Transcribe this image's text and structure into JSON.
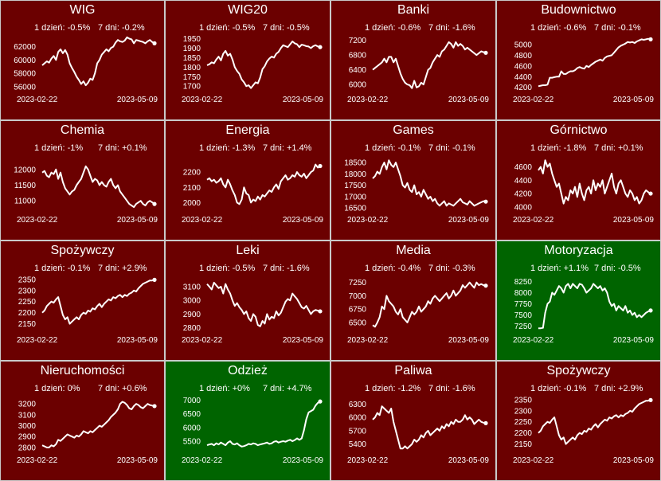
{
  "colors": {
    "down": "#6b0000",
    "up": "#006400",
    "line": "#ffffff",
    "border": "#c9c9c9"
  },
  "chart_data": [
    {
      "type": "line",
      "title": "WIG",
      "change_1d": "1 dzień: -0.5%",
      "change_7d": "7 dni: -0.2%",
      "trend": "down",
      "date_start": "2023-02-22",
      "date_end": "2023-05-09",
      "yticks": [
        "56000",
        "58000",
        "60000",
        "62000"
      ],
      "ylim": [
        55500,
        63500
      ],
      "values": [
        59200,
        59500,
        59800,
        59600,
        60200,
        60600,
        60000,
        61200,
        61600,
        61000,
        61500,
        60800,
        59500,
        58800,
        58200,
        57500,
        57000,
        56400,
        56800,
        56200,
        56600,
        57200,
        57000,
        58000,
        59500,
        60000,
        60800,
        61200,
        61600,
        61300,
        61800,
        62000,
        62600,
        63000,
        62800,
        62700,
        62900,
        63400,
        63200,
        63100,
        62500,
        63000,
        62900,
        62800,
        62700,
        62500,
        62800,
        63000,
        62700,
        62500
      ]
    },
    {
      "type": "line",
      "title": "WIG20",
      "change_1d": "1 dzień: -0.5%",
      "change_7d": "7 dni: -0.5%",
      "trend": "down",
      "date_start": "2023-02-22",
      "date_end": "2023-05-09",
      "yticks": [
        "1700",
        "1750",
        "1800",
        "1850",
        "1900",
        "1950"
      ],
      "ylim": [
        1680,
        1960
      ],
      "values": [
        1810,
        1815,
        1825,
        1820,
        1840,
        1855,
        1835,
        1870,
        1885,
        1860,
        1870,
        1840,
        1800,
        1780,
        1765,
        1735,
        1720,
        1700,
        1705,
        1690,
        1705,
        1720,
        1715,
        1745,
        1790,
        1805,
        1830,
        1845,
        1855,
        1850,
        1870,
        1880,
        1900,
        1915,
        1910,
        1905,
        1920,
        1935,
        1925,
        1920,
        1905,
        1918,
        1915,
        1910,
        1908,
        1900,
        1910,
        1915,
        1908,
        1905
      ]
    },
    {
      "type": "line",
      "title": "Banki",
      "change_1d": "1 dzień: -0.6%",
      "change_7d": "7 dni: -1.6%",
      "trend": "down",
      "date_start": "2023-02-22",
      "date_end": "2023-05-09",
      "yticks": [
        "6000",
        "6400",
        "6800",
        "7200"
      ],
      "ylim": [
        5850,
        7300
      ],
      "values": [
        6400,
        6450,
        6500,
        6550,
        6600,
        6700,
        6600,
        6750,
        6750,
        6600,
        6700,
        6500,
        6300,
        6150,
        6050,
        6000,
        5980,
        5900,
        6100,
        5920,
        5950,
        6050,
        6000,
        6200,
        6400,
        6450,
        6600,
        6700,
        6800,
        6750,
        6900,
        6950,
        7050,
        7150,
        7100,
        7000,
        7150,
        7050,
        7100,
        7050,
        6950,
        7000,
        6950,
        6900,
        6850,
        6800,
        6850,
        6900,
        6880,
        6860
      ]
    },
    {
      "type": "line",
      "title": "Budownictwo",
      "change_1d": "1 dzień: -0.6%",
      "change_7d": "7 dni: -0.1%",
      "trend": "down",
      "date_start": "2023-02-22",
      "date_end": "2023-05-09",
      "yticks": [
        "4200",
        "4400",
        "4600",
        "4800",
        "5000"
      ],
      "ylim": [
        4150,
        5150
      ],
      "values": [
        4220,
        4230,
        4240,
        4240,
        4250,
        4380,
        4380,
        4390,
        4400,
        4400,
        4500,
        4450,
        4450,
        4480,
        4500,
        4500,
        4520,
        4560,
        4580,
        4560,
        4550,
        4600,
        4580,
        4620,
        4650,
        4680,
        4700,
        4720,
        4700,
        4750,
        4780,
        4790,
        4800,
        4850,
        4900,
        4950,
        4980,
        5000,
        5020,
        5050,
        5040,
        5050,
        5030,
        5060,
        5080,
        5100,
        5090,
        5100,
        5110,
        5100
      ]
    },
    {
      "type": "line",
      "title": "Chemia",
      "change_1d": "1 dzień: -1%",
      "change_7d": "7 dni: +0.1%",
      "trend": "down",
      "date_start": "2023-02-22",
      "date_end": "2023-05-09",
      "yticks": [
        "11000",
        "11500",
        "12000"
      ],
      "ylim": [
        10700,
        12400
      ],
      "values": [
        11900,
        11950,
        11800,
        11750,
        11900,
        11850,
        12000,
        11700,
        11900,
        11600,
        11400,
        11300,
        11200,
        11300,
        11350,
        11500,
        11600,
        11700,
        11900,
        12100,
        12000,
        11800,
        11600,
        11700,
        11650,
        11500,
        11600,
        11500,
        11450,
        11600,
        11700,
        11500,
        11400,
        11500,
        11300,
        11200,
        11100,
        11000,
        10900,
        10850,
        10800,
        10900,
        10950,
        11000,
        10900,
        10850,
        10950,
        11000,
        10950,
        10900
      ]
    },
    {
      "type": "line",
      "title": "Energia",
      "change_1d": "1 dzień: -1.3%",
      "change_7d": "7 dni: +1.4%",
      "trend": "down",
      "date_start": "2023-02-22",
      "date_end": "2023-05-09",
      "yticks": [
        "2000",
        "2100",
        "2200"
      ],
      "ylim": [
        1950,
        2300
      ],
      "values": [
        2150,
        2160,
        2140,
        2150,
        2130,
        2140,
        2160,
        2120,
        2100,
        2150,
        2120,
        2080,
        2050,
        2000,
        1990,
        2020,
        2100,
        2060,
        2050,
        2000,
        2020,
        2010,
        2040,
        2020,
        2050,
        2040,
        2060,
        2080,
        2070,
        2100,
        2120,
        2090,
        2140,
        2160,
        2180,
        2150,
        2160,
        2180,
        2170,
        2200,
        2180,
        2170,
        2190,
        2160,
        2180,
        2200,
        2210,
        2250,
        2230,
        2240
      ]
    },
    {
      "type": "line",
      "title": "Games",
      "change_1d": "1 dzień: -0.1%",
      "change_7d": "7 dni: -0.1%",
      "trend": "down",
      "date_start": "2023-02-22",
      "date_end": "2023-05-09",
      "yticks": [
        "16500",
        "17000",
        "17500",
        "18000",
        "18500"
      ],
      "ylim": [
        16400,
        18750
      ],
      "values": [
        17800,
        17900,
        18100,
        18000,
        18300,
        18500,
        18200,
        18600,
        18400,
        18300,
        18500,
        18200,
        17900,
        17500,
        17400,
        17600,
        17300,
        17200,
        17500,
        17100,
        17200,
        17000,
        17300,
        17100,
        16900,
        17000,
        16800,
        16900,
        16700,
        16600,
        16700,
        16800,
        16600,
        16700,
        16650,
        16600,
        16700,
        16800,
        16900,
        16750,
        16700,
        16650,
        16800,
        16700,
        16600,
        16650,
        16700,
        16750,
        16800,
        16780
      ]
    },
    {
      "type": "line",
      "title": "Górnictwo",
      "change_1d": "1 dzień: -1.8%",
      "change_7d": "7 dni: +0.1%",
      "trend": "down",
      "date_start": "2023-02-22",
      "date_end": "2023-05-09",
      "yticks": [
        "4000",
        "4200",
        "4400",
        "4600"
      ],
      "ylim": [
        3950,
        4750
      ],
      "values": [
        4550,
        4600,
        4500,
        4700,
        4600,
        4650,
        4500,
        4400,
        4300,
        4350,
        4200,
        4050,
        4150,
        4100,
        4250,
        4200,
        4300,
        4150,
        4350,
        4200,
        4100,
        4250,
        4300,
        4200,
        4400,
        4250,
        4350,
        4300,
        4400,
        4200,
        4300,
        4400,
        4500,
        4300,
        4200,
        4350,
        4400,
        4300,
        4200,
        4150,
        4250,
        4200,
        4100,
        4150,
        4050,
        4100,
        4200,
        4250,
        4220,
        4200
      ]
    },
    {
      "type": "line",
      "title": "Spożywczy",
      "change_1d": "1 dzień: -0.1%",
      "change_7d": "7 dni: +2.9%",
      "trend": "down",
      "date_start": "2023-02-22",
      "date_end": "2023-05-09",
      "yticks": [
        "2150",
        "2200",
        "2250",
        "2300",
        "2350"
      ],
      "ylim": [
        2120,
        2360
      ],
      "values": [
        2200,
        2210,
        2230,
        2240,
        2250,
        2245,
        2260,
        2270,
        2230,
        2190,
        2170,
        2180,
        2150,
        2160,
        2170,
        2180,
        2170,
        2190,
        2200,
        2195,
        2210,
        2205,
        2220,
        2215,
        2230,
        2240,
        2225,
        2240,
        2250,
        2260,
        2255,
        2270,
        2265,
        2275,
        2280,
        2270,
        2280,
        2275,
        2285,
        2290,
        2300,
        2295,
        2310,
        2320,
        2330,
        2335,
        2340,
        2345,
        2345,
        2348
      ]
    },
    {
      "type": "line",
      "title": "Leki",
      "change_1d": "1 dzień: -0.5%",
      "change_7d": "7 dni: -1.6%",
      "trend": "down",
      "date_start": "2023-02-22",
      "date_end": "2023-05-09",
      "yticks": [
        "2800",
        "2900",
        "3000",
        "3100"
      ],
      "ylim": [
        2780,
        3170
      ],
      "values": [
        3120,
        3100,
        3080,
        3130,
        3110,
        3090,
        3100,
        3050,
        3120,
        3080,
        3050,
        3000,
        2960,
        2980,
        2950,
        2930,
        2900,
        2920,
        2870,
        2850,
        2900,
        2880,
        2820,
        2810,
        2850,
        2830,
        2900,
        2860,
        2880,
        2870,
        2920,
        2890,
        2910,
        2950,
        2990,
        3010,
        3000,
        3050,
        3030,
        3010,
        2980,
        2950,
        2940,
        2960,
        2930,
        2900,
        2920,
        2930,
        2925,
        2920
      ]
    },
    {
      "type": "line",
      "title": "Media",
      "change_1d": "1 dzień: -0.4%",
      "change_7d": "7 dni: -0.3%",
      "trend": "down",
      "date_start": "2023-02-22",
      "date_end": "2023-05-09",
      "yticks": [
        "6500",
        "6750",
        "7000",
        "7250"
      ],
      "ylim": [
        6350,
        7350
      ],
      "values": [
        6450,
        6420,
        6500,
        6600,
        6800,
        6750,
        7000,
        6900,
        6850,
        6800,
        6700,
        6650,
        6750,
        6600,
        6550,
        6500,
        6600,
        6700,
        6650,
        6700,
        6800,
        6700,
        6750,
        6800,
        6900,
        6850,
        6950,
        7000,
        6950,
        6900,
        6950,
        7000,
        7050,
        6950,
        7000,
        7100,
        7000,
        7050,
        7100,
        7200,
        7150,
        7200,
        7250,
        7200,
        7150,
        7250,
        7200,
        7220,
        7200,
        7190
      ]
    },
    {
      "type": "line",
      "title": "Motoryzacja",
      "change_1d": "1 dzień: +1.1%",
      "change_7d": "7 dni: -0.5%",
      "trend": "up",
      "date_start": "2023-02-22",
      "date_end": "2023-05-09",
      "yticks": [
        "7250",
        "7500",
        "7750",
        "8000",
        "8250"
      ],
      "ylim": [
        7150,
        8350
      ],
      "values": [
        7200,
        7200,
        7210,
        7550,
        7750,
        7800,
        8000,
        7950,
        8050,
        8150,
        8100,
        8000,
        8150,
        8200,
        8100,
        8200,
        8150,
        8100,
        8200,
        8180,
        8100,
        8000,
        8050,
        8100,
        8200,
        8150,
        8100,
        8150,
        8050,
        8100,
        8000,
        7800,
        7700,
        7750,
        7600,
        7700,
        7650,
        7600,
        7700,
        7550,
        7600,
        7500,
        7550,
        7450,
        7500,
        7450,
        7500,
        7550,
        7580,
        7600
      ]
    },
    {
      "type": "line",
      "title": "Nieruchomości",
      "change_1d": "1 dzień: 0%",
      "change_7d": "7 dni: +0.6%",
      "trend": "down",
      "date_start": "2023-02-22",
      "date_end": "2023-05-09",
      "yticks": [
        "2800",
        "2900",
        "3000",
        "3100",
        "3200"
      ],
      "ylim": [
        2770,
        3260
      ],
      "values": [
        2820,
        2810,
        2800,
        2800,
        2820,
        2810,
        2830,
        2870,
        2860,
        2880,
        2900,
        2920,
        2910,
        2900,
        2890,
        2910,
        2900,
        2920,
        2950,
        2940,
        2930,
        2950,
        2940,
        2960,
        2980,
        3000,
        2990,
        3010,
        3030,
        3050,
        3080,
        3100,
        3120,
        3150,
        3200,
        3220,
        3210,
        3190,
        3160,
        3150,
        3180,
        3200,
        3190,
        3170,
        3160,
        3180,
        3200,
        3190,
        3185,
        3180
      ]
    },
    {
      "type": "line",
      "title": "Odzież",
      "change_1d": "1 dzień: +0%",
      "change_7d": "7 dni: +4.7%",
      "trend": "up",
      "date_start": "2023-02-22",
      "date_end": "2023-05-09",
      "yticks": [
        "5500",
        "6000",
        "6500",
        "7000"
      ],
      "ylim": [
        5150,
        7100
      ],
      "values": [
        5350,
        5380,
        5400,
        5350,
        5420,
        5380,
        5450,
        5400,
        5350,
        5450,
        5500,
        5400,
        5380,
        5420,
        5350,
        5300,
        5320,
        5350,
        5400,
        5380,
        5420,
        5400,
        5350,
        5380,
        5400,
        5420,
        5450,
        5400,
        5420,
        5480,
        5500,
        5450,
        5480,
        5500,
        5480,
        5520,
        5550,
        5500,
        5540,
        5600,
        5550,
        5600,
        5900,
        6300,
        6550,
        6600,
        6650,
        6800,
        6900,
        6950
      ]
    },
    {
      "type": "line",
      "title": "Paliwa",
      "change_1d": "1 dzień: -1.2%",
      "change_7d": "7 dni: -1.6%",
      "trend": "down",
      "date_start": "2023-02-22",
      "date_end": "2023-05-09",
      "yticks": [
        "5400",
        "5700",
        "6000",
        "6300"
      ],
      "ylim": [
        5250,
        6450
      ],
      "values": [
        5950,
        6000,
        6100,
        6050,
        6250,
        6200,
        6150,
        6100,
        6200,
        5900,
        5700,
        5500,
        5300,
        5300,
        5350,
        5300,
        5350,
        5400,
        5500,
        5450,
        5500,
        5600,
        5550,
        5650,
        5700,
        5600,
        5650,
        5700,
        5750,
        5700,
        5800,
        5750,
        5850,
        5800,
        5900,
        5850,
        5950,
        5900,
        5900,
        5950,
        6050,
        5950,
        6000,
        5950,
        5850,
        5900,
        5950,
        5900,
        5880,
        5870
      ]
    },
    {
      "type": "line",
      "title": "Spożywczy",
      "change_1d": "1 dzień: -0.1%",
      "change_7d": "7 dni: +2.9%",
      "trend": "down",
      "date_start": "2023-02-22",
      "date_end": "2023-05-09",
      "yticks": [
        "2150",
        "2200",
        "2250",
        "2300",
        "2350"
      ],
      "ylim": [
        2120,
        2360
      ],
      "values": [
        2200,
        2210,
        2230,
        2240,
        2250,
        2245,
        2260,
        2270,
        2230,
        2190,
        2170,
        2180,
        2150,
        2160,
        2170,
        2180,
        2170,
        2190,
        2200,
        2195,
        2210,
        2205,
        2220,
        2215,
        2230,
        2240,
        2225,
        2240,
        2250,
        2260,
        2255,
        2270,
        2265,
        2275,
        2280,
        2270,
        2280,
        2275,
        2285,
        2290,
        2300,
        2295,
        2310,
        2320,
        2330,
        2335,
        2340,
        2345,
        2345,
        2348
      ]
    }
  ]
}
